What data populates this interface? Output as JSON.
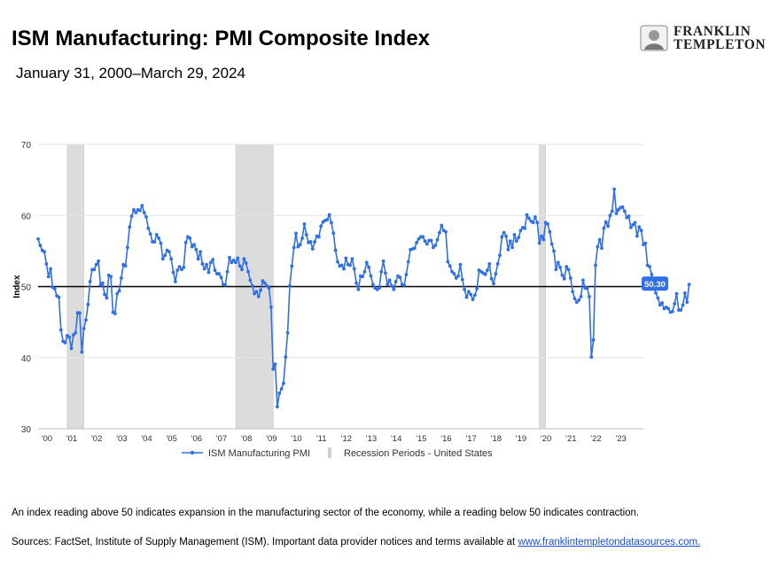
{
  "header": {
    "title": "ISM Manufacturing: PMI Composite Index",
    "subtitle": "January 31, 2000–March 29, 2024",
    "logo_line1": "FRANKLIN",
    "logo_line2": "TEMPLETON"
  },
  "footer": {
    "note": "An index reading above 50 indicates expansion in the manufacturing sector of the economy, while a reading below 50 indicates contraction.",
    "sources_prefix": "Sources: FactSet, Institute of Supply Management (ISM). Important data provider notices and terms available at ",
    "sources_link": "www.franklintempletondatasources.com."
  },
  "chart_data": {
    "type": "line",
    "ylabel": "Index",
    "xlabel": "",
    "ylim": [
      30,
      70
    ],
    "yticks": [
      30,
      40,
      50,
      60,
      70
    ],
    "xlim": [
      2000,
      2024.25
    ],
    "xtick_labels": [
      "'00",
      "'01",
      "'02",
      "'03",
      "'04",
      "'05",
      "'06",
      "'07",
      "'08",
      "'09",
      "'10",
      "'11",
      "'12",
      "'13",
      "'14",
      "'15",
      "'16",
      "'17",
      "'18",
      "'19",
      "'20",
      "'21",
      "'22",
      "'23"
    ],
    "grid": "horizontal",
    "reference_line": 50,
    "last_value_label": "50.30",
    "legend": {
      "position": "bottom",
      "series_label": "ISM Manufacturing PMI",
      "recession_label": "Recession Periods - United States"
    },
    "colors": {
      "series": "#2f6fe8",
      "recession": "#dcdcdc",
      "grid": "#e3e3e3",
      "reference": "#000000"
    },
    "recessions": [
      [
        2001.17,
        2001.83
      ],
      [
        2007.92,
        2009.42
      ],
      [
        2020.08,
        2020.33
      ]
    ],
    "series": [
      {
        "name": "ISM Manufacturing PMI",
        "start": 2000.0,
        "step": 0.08333,
        "values": [
          56.7,
          55.8,
          55.1,
          54.9,
          53.2,
          51.4,
          52.5,
          49.9,
          49.7,
          48.7,
          48.5,
          43.9,
          42.3,
          42.1,
          43.1,
          42.9,
          41.3,
          43.2,
          43.5,
          46.3,
          46.3,
          40.8,
          44.1,
          45.3,
          47.5,
          50.7,
          52.4,
          52.4,
          53.1,
          53.6,
          50.2,
          50.5,
          48.9,
          48.4,
          51.6,
          51.4,
          46.4,
          46.2,
          49.0,
          49.4,
          51.2,
          53.1,
          52.9,
          55.5,
          58.4,
          59.9,
          60.8,
          60.4,
          60.8,
          60.7,
          61.4,
          60.4,
          59.8,
          58.2,
          57.4,
          56.3,
          56.3,
          57.3,
          56.8,
          56.1,
          53.9,
          54.4,
          55.1,
          54.9,
          53.9,
          52.0,
          50.7,
          52.3,
          52.8,
          52.4,
          52.7,
          56.2,
          57.0,
          56.8,
          55.6,
          55.9,
          55.2,
          53.9,
          54.9,
          53.2,
          52.5,
          53.1,
          52.0,
          53.4,
          53.8,
          52.3,
          51.8,
          51.8,
          51.3,
          50.3,
          50.2,
          52.1,
          54.1,
          53.4,
          53.7,
          53.4,
          54.0,
          52.9,
          52.4,
          53.9,
          53.3,
          52.1,
          50.9,
          50.1,
          49.0,
          49.3,
          48.6,
          49.5,
          50.8,
          50.5,
          50.1,
          49.8,
          47.1,
          38.4,
          39.1,
          33.1,
          35.0,
          35.6,
          36.4,
          40.1,
          43.5,
          50.1,
          52.9,
          55.5,
          57.5,
          55.6,
          55.9,
          56.8,
          58.8,
          57.3,
          56.2,
          56.3,
          55.3,
          56.3,
          57.1,
          57.0,
          58.5,
          59.1,
          59.3,
          59.4,
          60.1,
          59.0,
          57.5,
          55.1,
          53.5,
          52.9,
          53.0,
          52.5,
          54.0,
          53.1,
          53.0,
          53.9,
          52.5,
          50.5,
          49.6,
          51.5,
          51.4,
          52.1,
          53.4,
          52.7,
          51.5,
          50.3,
          49.8,
          49.6,
          49.8,
          52.1,
          53.6,
          51.9,
          50.3,
          50.9,
          50.1,
          49.6,
          50.7,
          51.5,
          51.3,
          50.3,
          50.2,
          51.7,
          53.5,
          55.2,
          55.3,
          55.4,
          56.2,
          56.7,
          57.0,
          57.0,
          56.4,
          56.0,
          56.5,
          56.5,
          55.5,
          55.8,
          56.6,
          57.6,
          58.6,
          57.9,
          57.7,
          53.5,
          52.9,
          52.1,
          51.8,
          51.2,
          51.5,
          53.1,
          51.0,
          49.6,
          48.5,
          49.3,
          48.9,
          48.2,
          48.8,
          49.7,
          52.3,
          52.1,
          51.9,
          51.7,
          52.3,
          53.2,
          51.1,
          50.4,
          51.8,
          53.2,
          54.4,
          57.0,
          57.6,
          57.1,
          55.2,
          56.4,
          55.5,
          57.3,
          56.4,
          56.9,
          57.9,
          58.3,
          58.2,
          60.1,
          59.6,
          59.2,
          59.0,
          59.8,
          59.0,
          56.1,
          57.1,
          56.6,
          59.0,
          58.8,
          57.7,
          56.0,
          55.0,
          52.4,
          53.4,
          52.7,
          51.6,
          51.1,
          52.8,
          52.4,
          51.2,
          49.3,
          48.3,
          47.8,
          48.1,
          48.6,
          50.9,
          49.8,
          49.8,
          48.6,
          40.1,
          42.5,
          53.0,
          55.6,
          56.6,
          55.4,
          58.2,
          59.1,
          58.5,
          60.0,
          60.6,
          63.7,
          60.3,
          60.8,
          61.1,
          61.2,
          60.6,
          59.7,
          59.9,
          58.3,
          58.7,
          59.0,
          57.1,
          58.4,
          57.9,
          55.9,
          56.1,
          53.0,
          52.8,
          51.7,
          50.0,
          49.1,
          48.4,
          47.4,
          47.7,
          46.9,
          47.1,
          46.9,
          46.4,
          46.5,
          47.6,
          49.0,
          46.7,
          46.7,
          47.4,
          49.1,
          47.8,
          50.3
        ]
      }
    ]
  }
}
